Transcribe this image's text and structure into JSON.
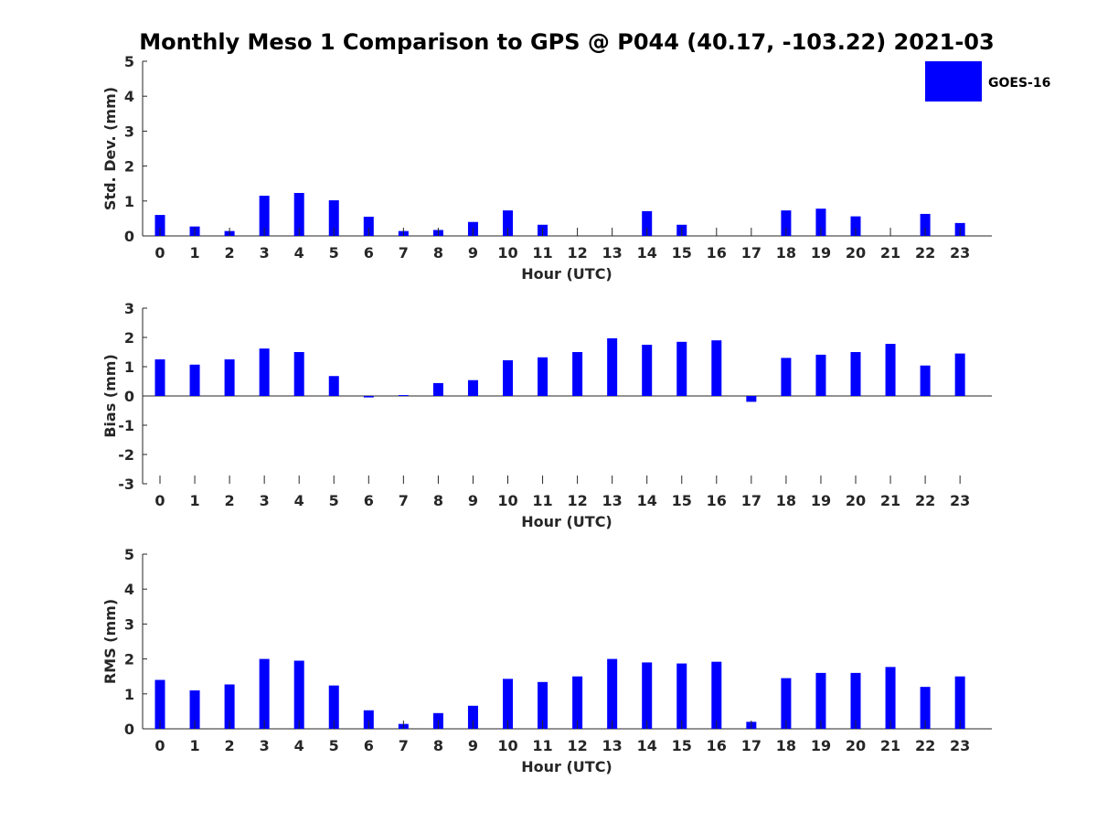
{
  "title": "Monthly Meso 1 Comparison to GPS @ P044 (40.17, -103.22) 2021-03",
  "legend": {
    "label": "GOES-16",
    "color": "#0000ff",
    "placement": "top-right"
  },
  "chart_data": [
    {
      "type": "bar",
      "ylabel": "Std. Dev. (mm)",
      "xlabel": "Hour (UTC)",
      "ylim": [
        0,
        5
      ],
      "yticks": [
        "0",
        "1",
        "2",
        "3",
        "4",
        "5"
      ],
      "categories": [
        "0",
        "1",
        "2",
        "3",
        "4",
        "5",
        "6",
        "7",
        "8",
        "9",
        "10",
        "11",
        "12",
        "13",
        "14",
        "15",
        "16",
        "17",
        "18",
        "19",
        "20",
        "21",
        "22",
        "23"
      ],
      "series": [
        {
          "name": "GOES-16",
          "values": [
            0.6,
            0.27,
            0.14,
            1.15,
            1.23,
            1.02,
            0.55,
            0.14,
            0.17,
            0.4,
            0.73,
            0.32,
            0,
            0,
            0.71,
            0.32,
            0,
            0,
            0.73,
            0.78,
            0.56,
            0,
            0.63,
            0.37
          ]
        }
      ]
    },
    {
      "type": "bar",
      "ylabel": "Bias (mm)",
      "xlabel": "Hour (UTC)",
      "ylim": [
        -3,
        3
      ],
      "yticks": [
        "-3",
        "-2",
        "-1",
        "0",
        "1",
        "2",
        "3"
      ],
      "categories": [
        "0",
        "1",
        "2",
        "3",
        "4",
        "5",
        "6",
        "7",
        "8",
        "9",
        "10",
        "11",
        "12",
        "13",
        "14",
        "15",
        "16",
        "17",
        "18",
        "19",
        "20",
        "21",
        "22",
        "23"
      ],
      "series": [
        {
          "name": "GOES-16",
          "values": [
            1.25,
            1.07,
            1.25,
            1.62,
            1.5,
            0.68,
            -0.05,
            0.03,
            0.44,
            0.54,
            1.22,
            1.32,
            1.5,
            1.97,
            1.75,
            1.85,
            1.9,
            -0.2,
            1.3,
            1.41,
            1.5,
            1.78,
            1.04,
            1.45
          ]
        }
      ]
    },
    {
      "type": "bar",
      "ylabel": "RMS (mm)",
      "xlabel": "Hour (UTC)",
      "ylim": [
        0,
        5
      ],
      "yticks": [
        "0",
        "1",
        "2",
        "3",
        "4",
        "5"
      ],
      "categories": [
        "0",
        "1",
        "2",
        "3",
        "4",
        "5",
        "6",
        "7",
        "8",
        "9",
        "10",
        "11",
        "12",
        "13",
        "14",
        "15",
        "16",
        "17",
        "18",
        "19",
        "20",
        "21",
        "22",
        "23"
      ],
      "series": [
        {
          "name": "GOES-16",
          "values": [
            1.4,
            1.1,
            1.27,
            2.0,
            1.95,
            1.24,
            0.53,
            0.14,
            0.45,
            0.66,
            1.43,
            1.34,
            1.5,
            2.0,
            1.9,
            1.87,
            1.92,
            0.2,
            1.45,
            1.6,
            1.6,
            1.77,
            1.2,
            1.5
          ]
        }
      ]
    }
  ]
}
